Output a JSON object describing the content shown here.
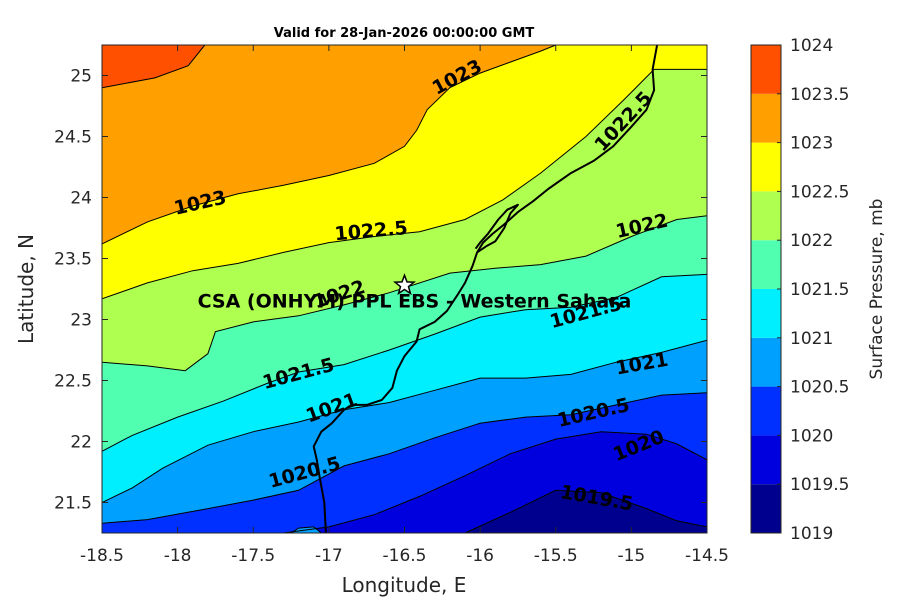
{
  "chart_data": {
    "type": "contour-map",
    "title": "Valid for 28-Jan-2026 00:00:00 GMT",
    "xlabel": "Longitude, E",
    "ylabel": "Latitude, N",
    "xlim": [
      -18.5,
      -14.5
    ],
    "ylim": [
      21.25,
      25.25
    ],
    "x_ticks": [
      "-18.5",
      "-18",
      "-17.5",
      "-17",
      "-16.5",
      "-16",
      "-15.5",
      "-15",
      "-14.5"
    ],
    "y_ticks": [
      "21.5",
      "22",
      "22.5",
      "23",
      "23.5",
      "24",
      "24.5",
      "25"
    ],
    "x_tick_values": [
      -18.5,
      -18,
      -17.5,
      -17,
      -16.5,
      -16,
      -15.5,
      -15,
      -14.5
    ],
    "y_tick_values": [
      21.5,
      22,
      22.5,
      23,
      23.5,
      24,
      24.5,
      25
    ],
    "colorbar": {
      "label": "Surface Pressure, mb",
      "range": [
        1019,
        1024
      ],
      "levels": [
        {
          "value": 1019,
          "label": "1019",
          "color": "#00008f"
        },
        {
          "value": 1019.5,
          "label": "1019.5",
          "color": "#0000df"
        },
        {
          "value": 1020,
          "label": "1020",
          "color": "#0030ff"
        },
        {
          "value": 1020.5,
          "label": "1020.5",
          "color": "#00a0ff"
        },
        {
          "value": 1021,
          "label": "1021",
          "color": "#00efff"
        },
        {
          "value": 1021.5,
          "label": "1021.5",
          "color": "#50ffaf"
        },
        {
          "value": 1022,
          "label": "1022",
          "color": "#afff50"
        },
        {
          "value": 1022.5,
          "label": "1022.5",
          "color": "#ffff00"
        },
        {
          "value": 1023,
          "label": "1023",
          "color": "#ffa000"
        },
        {
          "value": 1023.5,
          "label": "1023.5",
          "color": "#ff5000"
        },
        {
          "value": 1024,
          "label": "1024",
          "color": "#ff0000"
        }
      ]
    },
    "contours": [
      {
        "level": 1023.5,
        "pts": [
          [
            -18.5,
            24.9
          ],
          [
            -18.15,
            24.98
          ],
          [
            -17.93,
            25.08
          ],
          [
            -17.82,
            25.25
          ]
        ]
      },
      {
        "level": 1023,
        "pts": [
          [
            -18.5,
            23.62
          ],
          [
            -18.2,
            23.8
          ],
          [
            -17.9,
            23.93
          ],
          [
            -17.6,
            24.03
          ],
          [
            -17.3,
            24.1
          ],
          [
            -17.0,
            24.18
          ],
          [
            -16.7,
            24.28
          ],
          [
            -16.5,
            24.42
          ],
          [
            -16.42,
            24.55
          ],
          [
            -16.35,
            24.72
          ],
          [
            -16.2,
            24.9
          ],
          [
            -16.0,
            25.02
          ],
          [
            -15.6,
            25.2
          ],
          [
            -15.5,
            25.25
          ]
        ]
      },
      {
        "level": 1022.5,
        "pts": [
          [
            -18.5,
            23.17
          ],
          [
            -18.2,
            23.3
          ],
          [
            -17.9,
            23.4
          ],
          [
            -17.6,
            23.46
          ],
          [
            -17.3,
            23.55
          ],
          [
            -17.0,
            23.63
          ],
          [
            -16.7,
            23.68
          ],
          [
            -16.4,
            23.72
          ],
          [
            -16.1,
            23.82
          ],
          [
            -15.85,
            23.98
          ],
          [
            -15.6,
            24.2
          ],
          [
            -15.3,
            24.5
          ],
          [
            -15.05,
            24.8
          ],
          [
            -14.85,
            25.05
          ],
          [
            -14.5,
            25.05
          ]
        ]
      },
      {
        "level": 1022,
        "pts": [
          [
            -18.5,
            22.65
          ],
          [
            -18.2,
            22.62
          ],
          [
            -17.95,
            22.58
          ],
          [
            -17.8,
            22.72
          ],
          [
            -17.75,
            22.9
          ],
          [
            -17.5,
            22.98
          ],
          [
            -17.2,
            23.03
          ],
          [
            -16.9,
            23.12
          ],
          [
            -16.6,
            23.22
          ],
          [
            -16.2,
            23.38
          ],
          [
            -15.9,
            23.42
          ],
          [
            -15.6,
            23.45
          ],
          [
            -15.3,
            23.52
          ],
          [
            -15.0,
            23.68
          ],
          [
            -14.7,
            23.82
          ],
          [
            -14.5,
            23.85
          ]
        ]
      },
      {
        "level": 1021.5,
        "pts": [
          [
            -18.5,
            21.92
          ],
          [
            -18.3,
            22.05
          ],
          [
            -18.0,
            22.2
          ],
          [
            -17.7,
            22.33
          ],
          [
            -17.4,
            22.48
          ],
          [
            -17.2,
            22.57
          ],
          [
            -16.9,
            22.63
          ],
          [
            -16.6,
            22.75
          ],
          [
            -16.3,
            22.88
          ],
          [
            -16.0,
            23.02
          ],
          [
            -15.7,
            23.08
          ],
          [
            -15.4,
            23.1
          ],
          [
            -15.1,
            23.18
          ],
          [
            -14.8,
            23.35
          ],
          [
            -14.5,
            23.37
          ]
        ]
      },
      {
        "level": 1021,
        "pts": [
          [
            -18.5,
            21.5
          ],
          [
            -18.3,
            21.62
          ],
          [
            -18.1,
            21.78
          ],
          [
            -17.8,
            21.97
          ],
          [
            -17.5,
            22.08
          ],
          [
            -17.2,
            22.16
          ],
          [
            -16.9,
            22.26
          ],
          [
            -16.6,
            22.32
          ],
          [
            -16.3,
            22.42
          ],
          [
            -16.0,
            22.52
          ],
          [
            -15.7,
            22.52
          ],
          [
            -15.4,
            22.55
          ],
          [
            -15.1,
            22.65
          ],
          [
            -14.8,
            22.73
          ],
          [
            -14.5,
            22.83
          ]
        ]
      },
      {
        "level": 1020.5,
        "pts": [
          [
            -18.5,
            21.33
          ],
          [
            -18.2,
            21.36
          ],
          [
            -17.8,
            21.45
          ],
          [
            -17.5,
            21.52
          ],
          [
            -17.2,
            21.6
          ],
          [
            -16.9,
            21.8
          ],
          [
            -16.6,
            21.9
          ],
          [
            -16.3,
            22.03
          ],
          [
            -16.0,
            22.15
          ],
          [
            -15.7,
            22.2
          ],
          [
            -15.4,
            22.22
          ],
          [
            -15.1,
            22.3
          ],
          [
            -14.8,
            22.38
          ],
          [
            -14.5,
            22.4
          ]
        ]
      },
      {
        "level": 1020,
        "pts": [
          [
            -17.3,
            21.25
          ],
          [
            -17.0,
            21.3
          ],
          [
            -16.7,
            21.4
          ],
          [
            -16.4,
            21.55
          ],
          [
            -16.1,
            21.72
          ],
          [
            -15.8,
            21.9
          ],
          [
            -15.5,
            22.02
          ],
          [
            -15.2,
            22.08
          ],
          [
            -14.9,
            22.06
          ],
          [
            -14.7,
            21.98
          ],
          [
            -14.5,
            21.85
          ]
        ]
      },
      {
        "level": 1019.5,
        "pts": [
          [
            -16.1,
            21.25
          ],
          [
            -15.8,
            21.42
          ],
          [
            -15.5,
            21.6
          ],
          [
            -15.2,
            21.58
          ],
          [
            -14.9,
            21.45
          ],
          [
            -14.7,
            21.35
          ],
          [
            -14.5,
            21.3
          ]
        ]
      },
      {
        "level": 1020.5,
        "pts": [
          [
            -17.25,
            21.25
          ],
          [
            -17.2,
            21.29
          ],
          [
            -17.1,
            21.3
          ],
          [
            -17.05,
            21.25
          ]
        ]
      }
    ],
    "contour_labels": [
      {
        "text": "1023",
        "lon": -17.85,
        "lat": 23.95,
        "angle": -13
      },
      {
        "text": "1023",
        "lon": -16.15,
        "lat": 24.98,
        "angle": -28
      },
      {
        "text": "1022.5",
        "lon": -16.72,
        "lat": 23.72,
        "angle": -5
      },
      {
        "text": "1022.5",
        "lon": -15.05,
        "lat": 24.62,
        "angle": -47
      },
      {
        "text": "1022",
        "lon": -16.93,
        "lat": 23.2,
        "angle": -18
      },
      {
        "text": "1022",
        "lon": -14.93,
        "lat": 23.76,
        "angle": -13
      },
      {
        "text": "1021.5",
        "lon": -17.2,
        "lat": 22.55,
        "angle": -15
      },
      {
        "text": "1021.5",
        "lon": -15.3,
        "lat": 23.05,
        "angle": -15
      },
      {
        "text": "1021",
        "lon": -16.98,
        "lat": 22.27,
        "angle": -20
      },
      {
        "text": "1021",
        "lon": -14.93,
        "lat": 22.63,
        "angle": -10
      },
      {
        "text": "1020.5",
        "lon": -17.16,
        "lat": 21.74,
        "angle": -15
      },
      {
        "text": "1020.5",
        "lon": -15.25,
        "lat": 22.23,
        "angle": -13
      },
      {
        "text": "1020",
        "lon": -14.95,
        "lat": 21.96,
        "angle": -22
      },
      {
        "text": "1019.5",
        "lon": -15.23,
        "lat": 21.53,
        "angle": 10
      }
    ],
    "coastline": [
      [
        -17.02,
        21.25
      ],
      [
        -17.03,
        21.5
      ],
      [
        -17.06,
        21.7
      ],
      [
        -17.08,
        21.85
      ],
      [
        -17.1,
        21.96
      ],
      [
        -17.05,
        22.08
      ],
      [
        -16.98,
        22.15
      ],
      [
        -16.9,
        22.26
      ],
      [
        -16.85,
        22.3
      ],
      [
        -16.75,
        22.3
      ],
      [
        -16.65,
        22.34
      ],
      [
        -16.58,
        22.44
      ],
      [
        -16.55,
        22.58
      ],
      [
        -16.5,
        22.7
      ],
      [
        -16.42,
        22.82
      ],
      [
        -16.4,
        22.92
      ],
      [
        -16.3,
        22.98
      ],
      [
        -16.22,
        23.07
      ],
      [
        -16.15,
        23.2
      ],
      [
        -16.1,
        23.3
      ],
      [
        -16.05,
        23.44
      ],
      [
        -16.02,
        23.55
      ],
      [
        -15.98,
        23.63
      ],
      [
        -15.92,
        23.7
      ],
      [
        -15.84,
        23.78
      ],
      [
        -15.75,
        23.88
      ],
      [
        -15.65,
        23.97
      ],
      [
        -15.55,
        24.07
      ],
      [
        -15.4,
        24.2
      ],
      [
        -15.25,
        24.3
      ],
      [
        -15.12,
        24.42
      ],
      [
        -15.0,
        24.58
      ],
      [
        -14.9,
        24.72
      ],
      [
        -14.85,
        24.88
      ],
      [
        -14.86,
        25.05
      ],
      [
        -14.83,
        25.25
      ]
    ],
    "coastline_spit": [
      [
        -16.02,
        23.55
      ],
      [
        -15.96,
        23.6
      ],
      [
        -15.9,
        23.64
      ],
      [
        -15.84,
        23.75
      ],
      [
        -15.8,
        23.87
      ],
      [
        -15.75,
        23.94
      ],
      [
        -15.82,
        23.9
      ],
      [
        -15.88,
        23.82
      ],
      [
        -15.95,
        23.7
      ],
      [
        -16.0,
        23.63
      ],
      [
        -16.03,
        23.58
      ]
    ],
    "station": {
      "name": "CSA (ONHYM) PPL EBS  - Western Sahara",
      "lon": -16.5,
      "lat": 23.28
    }
  }
}
